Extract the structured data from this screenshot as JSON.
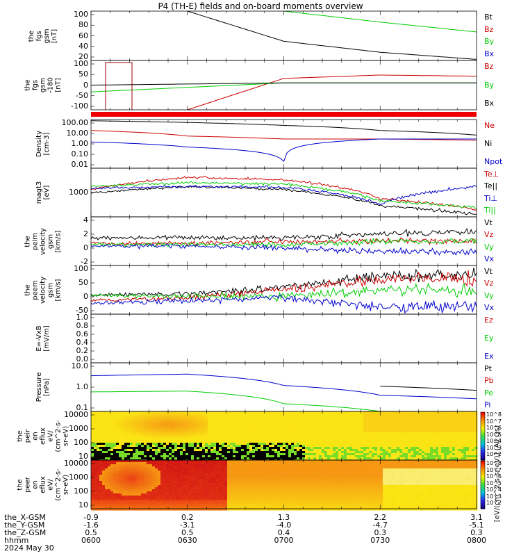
{
  "title": "P4 (TH-E) fields and on-board moments overview",
  "panels": [
    {
      "label": "the\nfgs\ngsm\n[nT]",
      "ticks": [
        "100",
        "80",
        "60",
        "40",
        "20"
      ],
      "legend": [
        {
          "t": "Bt",
          "c": "#000000"
        },
        {
          "t": "Bz",
          "c": "#cc0000"
        },
        {
          "t": "By",
          "c": "#00cc00"
        },
        {
          "t": "Bx",
          "c": "#0000cc"
        }
      ]
    },
    {
      "label": "the\nfgs\ngsm\n-180\n[nT]",
      "ticks": [
        "100",
        "50",
        "0",
        "-50",
        "-100"
      ],
      "legend": [
        {
          "t": "Bz",
          "c": "#cc0000"
        },
        {
          "t": "By",
          "c": "#00cc00"
        },
        {
          "t": "Bx",
          "c": "#000000"
        }
      ]
    },
    {
      "label": "Density\n[cm-3]",
      "ticks": [
        "100.00",
        "10.00",
        "1.00",
        "0.10",
        "0.01"
      ],
      "legend": [
        {
          "t": "Ne",
          "c": "#cc0000"
        },
        {
          "t": "Ni",
          "c": "#000000"
        },
        {
          "t": "Npot",
          "c": "#0000cc"
        }
      ]
    },
    {
      "label": "magt3\n[eV]",
      "ticks": [
        "1000"
      ],
      "legend": [
        {
          "t": "Te⊥",
          "c": "#cc0000"
        },
        {
          "t": "Te||",
          "c": "#000000"
        },
        {
          "t": "Ti⊥",
          "c": "#0000cc"
        },
        {
          "t": "Ti||",
          "c": "#00cc00"
        }
      ]
    },
    {
      "label": "the\npeim\nvelocity\ngsm\n[km/s]",
      "ticks": [
        "4",
        "2",
        "0",
        "-2"
      ],
      "legend": [
        {
          "t": "Vt",
          "c": "#000000"
        },
        {
          "t": "Vz",
          "c": "#cc0000"
        },
        {
          "t": "Vy",
          "c": "#00cc00"
        },
        {
          "t": "Vx",
          "c": "#0000cc"
        }
      ]
    },
    {
      "label": "the\npeem\nvelocity\ngsm\n[km/s]",
      "ticks": [
        "100",
        "50",
        "0",
        "-50"
      ],
      "legend": [
        {
          "t": "Vt",
          "c": "#000000"
        },
        {
          "t": "Vz",
          "c": "#cc0000"
        },
        {
          "t": "Vy",
          "c": "#00cc00"
        },
        {
          "t": "Vx",
          "c": "#0000cc"
        }
      ]
    },
    {
      "label": "E=-VxB\n[mV/m]",
      "ticks": [
        "1.0",
        "0.8",
        "0.6",
        "0.4",
        "0.2",
        "0.0"
      ],
      "legend": [
        {
          "t": "Ez",
          "c": "#cc0000"
        },
        {
          "t": "Ey",
          "c": "#00cc00"
        },
        {
          "t": "Ex",
          "c": "#0000cc"
        }
      ]
    },
    {
      "label": "Pressure\n[nPa]",
      "ticks": [
        "10.0",
        "1.0",
        "0.1"
      ],
      "legend": [
        {
          "t": "Pt",
          "c": "#000000"
        },
        {
          "t": "Pb",
          "c": "#cc0000"
        },
        {
          "t": "Pe",
          "c": "#00cc00"
        },
        {
          "t": "Pi",
          "c": "#0000cc"
        }
      ]
    },
    {
      "label": "the\npeir\nen\neflux\neV/\n(cm^2-s-\nsr-eV)",
      "ticks": [
        "10000",
        "1000",
        "100",
        "10"
      ],
      "legend": []
    },
    {
      "label": "the\npeer\nen\neflux\neV/\n(cm^2-s-\nsr-eV)",
      "ticks": [
        "10000",
        "1000",
        "100",
        "10"
      ],
      "legend": []
    }
  ],
  "colorbar": {
    "ticks": [
      "10^8",
      "10^7",
      "10^6",
      "10^5",
      "10^4",
      "10^3",
      "10^2"
    ],
    "unit": "[eV/(cm^2-s-sr-eV)] (All Qs)"
  },
  "xaxis": {
    "rows": [
      {
        "label": "the_X-GSM",
        "values": [
          "-0.9",
          "0.2",
          "1.3",
          "2.2",
          "3.1"
        ]
      },
      {
        "label": "the_Y-GSM",
        "values": [
          "-1.6",
          "-3.1",
          "-4.0",
          "-4.7",
          "-5.1"
        ]
      },
      {
        "label": "the_Z-GSM",
        "values": [
          "0.5",
          "0.5",
          "0.4",
          "0.3",
          "0.3"
        ]
      },
      {
        "label": "hhmm",
        "values": [
          "0600",
          "0630",
          "0700",
          "0730",
          "0800"
        ]
      }
    ],
    "date": "2024 May 30"
  },
  "chart_data": {
    "type": "line",
    "title": "P4 (TH-E) fields and on-board moments overview",
    "x": [
      "0600",
      "0630",
      "0700",
      "0730",
      "0800"
    ],
    "panels": [
      {
        "ylabel": "the fgs gsm [nT]",
        "ylim": [
          10,
          100
        ],
        "series": [
          {
            "name": "By",
            "values": [
              null,
              null,
              100,
              80,
              62
            ]
          },
          {
            "name": "Bx",
            "values": [
              null,
              100,
              45,
              25,
              12
            ]
          }
        ]
      },
      {
        "ylabel": "the fgs gsm -180 [nT]",
        "ylim": [
          -120,
          100
        ],
        "series": [
          {
            "name": "Bz",
            "values": [
              null,
              -120,
              20,
              35,
              30
            ]
          },
          {
            "name": "By",
            "values": [
              -40,
              -20,
              0,
              0,
              0
            ]
          },
          {
            "name": "Bx",
            "values": [
              -10,
              -5,
              0,
              0,
              0
            ]
          }
        ]
      },
      {
        "ylabel": "Density [cm-3]",
        "ylim": [
          0.002,
          200
        ],
        "log": true,
        "series": [
          {
            "name": "Ne",
            "values": [
              15,
              4,
              2,
              2,
              1.5
            ]
          },
          {
            "name": "Ni",
            "values": [
              150,
              100,
              50,
              15,
              5
            ]
          },
          {
            "name": "Npot",
            "values": [
              1,
              0.3,
              0.01,
              2,
              2
            ]
          }
        ]
      },
      {
        "ylabel": "magt3 [eV]",
        "log": true,
        "series": [
          {
            "name": "Te⊥",
            "values": [
              1200,
              3000,
              2500,
              600,
              250
            ]
          },
          {
            "name": "Te||",
            "values": [
              900,
              1500,
              1200,
              350,
              180
            ]
          },
          {
            "name": "Ti⊥",
            "values": [
              1300,
              1500,
              1400,
              400,
              1500
            ]
          },
          {
            "name": "Ti||",
            "values": [
              1500,
              2000,
              1800,
              500,
              300
            ]
          }
        ]
      },
      {
        "ylabel": "the peim velocity gsm [km/s]",
        "ylim": [
          -3,
          4
        ],
        "series": [
          {
            "name": "Vt",
            "values": [
              1,
              1,
              1,
              1.5,
              2
            ]
          },
          {
            "name": "Vz",
            "values": [
              0.2,
              0.2,
              0.5,
              0.5,
              0.5
            ]
          },
          {
            "name": "Vy",
            "values": [
              0,
              0,
              0,
              0.5,
              0.5
            ]
          },
          {
            "name": "Vx",
            "values": [
              -0.2,
              -0.2,
              -0.5,
              -1,
              -1
            ]
          }
        ]
      },
      {
        "ylabel": "the peem velocity gsm [km/s]",
        "ylim": [
          -60,
          120
        ],
        "series": [
          {
            "name": "Vt",
            "values": [
              10,
              15,
              40,
              80,
              85
            ]
          },
          {
            "name": "Vz",
            "values": [
              -10,
              0,
              30,
              70,
              70
            ]
          },
          {
            "name": "Vy",
            "values": [
              10,
              5,
              5,
              30,
              25
            ]
          },
          {
            "name": "Vx",
            "values": [
              -20,
              -10,
              0,
              -30,
              -30
            ]
          }
        ]
      },
      {
        "ylabel": "E=-VxB [mV/m]",
        "ylim": [
          0,
          1
        ],
        "series": []
      },
      {
        "ylabel": "Pressure [nPa]",
        "ylim": [
          0.05,
          50
        ],
        "log": true,
        "series": [
          {
            "name": "Pt",
            "values": [
              null,
              null,
              null,
              1.8,
              1
            ]
          },
          {
            "name": "Pi",
            "values": [
              8,
              10,
              2,
              0.5,
              0.3
            ]
          },
          {
            "name": "Pe",
            "values": [
              0.8,
              0.9,
              0.15,
              0.05,
              0.03
            ]
          }
        ]
      }
    ]
  }
}
